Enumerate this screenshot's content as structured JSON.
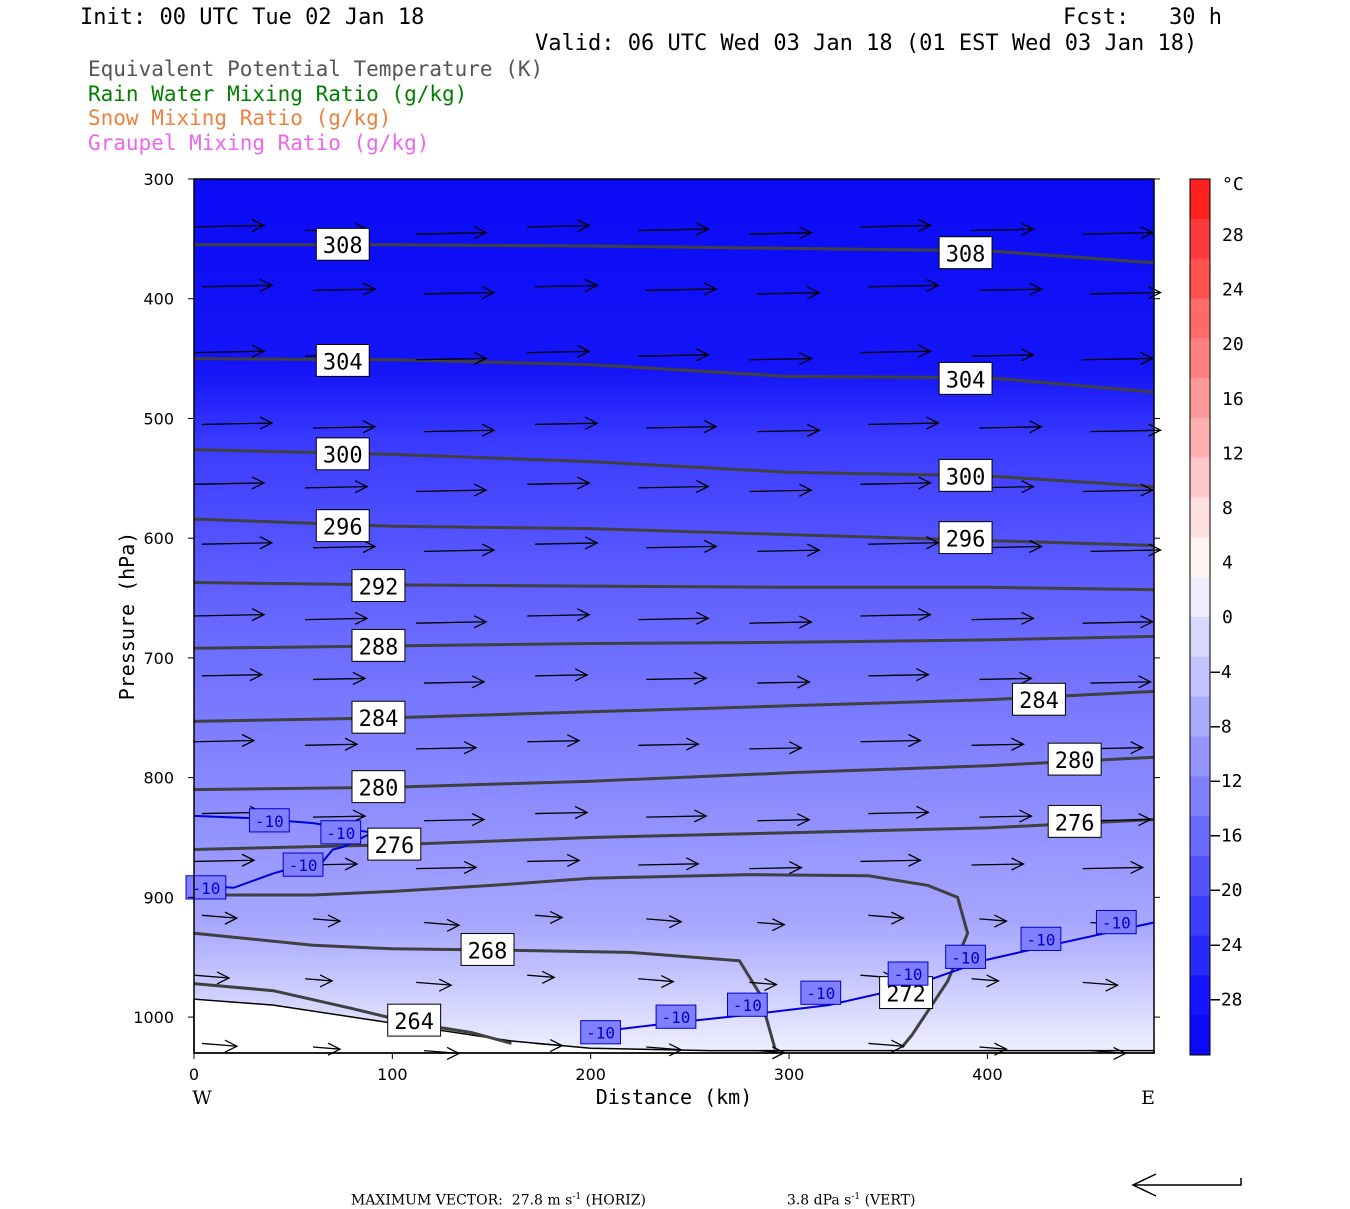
{
  "header": {
    "init": "Init: 00 UTC Tue 02 Jan 18",
    "fcst": "Fcst:   30 h",
    "valid": "Valid: 06 UTC Wed 03 Jan 18 (01 EST Wed 03 Jan 18)"
  },
  "legend_lines": [
    {
      "text": "Equivalent Potential Temperature (K)",
      "color": "#555555"
    },
    {
      "text": "Rain Water Mixing Ratio (g/kg)",
      "color": "#007f00"
    },
    {
      "text": "Snow Mixing Ratio (g/kg)",
      "color": "#f08040"
    },
    {
      "text": "Graupel Mixing Ratio (g/kg)",
      "color": "#ee66ee"
    }
  ],
  "footer": {
    "max_vector_label": "MAXIMUM VECTOR:",
    "horiz": "27.8 m s",
    "horiz_unit": "(HORIZ)",
    "vert": "3.8 dPa s",
    "vert_unit": "(VERT)",
    "exponent": "-1"
  },
  "chart_data": {
    "type": "contour",
    "xlabel": "Distance (km)",
    "ylabel": "Pressure (hPa)",
    "xlim": [
      0,
      484
    ],
    "ylim": [
      1030,
      300
    ],
    "x_ticks": [
      0,
      100,
      200,
      300,
      400
    ],
    "y_ticks": [
      300,
      400,
      500,
      600,
      700,
      800,
      900,
      1000
    ],
    "x_end_labels": {
      "left": "W",
      "right": "E"
    },
    "fill_colors": {
      "cold": "#0a0af5",
      "warm": "#f0f0ff"
    },
    "colorbar": {
      "unit": "°C",
      "labels": [
        28,
        24,
        20,
        16,
        12,
        8,
        4,
        0,
        -4,
        -8,
        -12,
        -16,
        -20,
        -24,
        -28
      ],
      "colors": [
        "#ff2020",
        "#ff3a3a",
        "#ff5050",
        "#ff6a6a",
        "#ff8080",
        "#ff9898",
        "#ffb0b0",
        "#ffc8c8",
        "#ffdfdf",
        "#fff2f2",
        "#eeeeff",
        "#d8d8ff",
        "#c2c2ff",
        "#acacff",
        "#9696ff",
        "#8080ff",
        "#6a6aff",
        "#5454ff",
        "#3e3eff",
        "#2828ff",
        "#1414ff",
        "#0a0af5"
      ]
    },
    "theta_e_contours": [
      {
        "label": "308",
        "points": [
          [
            0,
            355
          ],
          [
            100,
            355
          ],
          [
            200,
            356
          ],
          [
            300,
            358
          ],
          [
            400,
            360
          ],
          [
            484,
            370
          ]
        ]
      },
      {
        "label": "304",
        "points": [
          [
            0,
            450
          ],
          [
            100,
            451
          ],
          [
            200,
            455
          ],
          [
            300,
            465
          ],
          [
            400,
            466
          ],
          [
            484,
            478
          ]
        ]
      },
      {
        "label": "300",
        "points": [
          [
            0,
            526
          ],
          [
            100,
            530
          ],
          [
            200,
            536
          ],
          [
            300,
            545
          ],
          [
            400,
            548
          ],
          [
            484,
            557
          ]
        ]
      },
      {
        "label": "296",
        "points": [
          [
            0,
            584
          ],
          [
            100,
            590
          ],
          [
            200,
            592
          ],
          [
            300,
            597
          ],
          [
            400,
            602
          ],
          [
            484,
            606
          ]
        ]
      },
      {
        "label": "292",
        "points": [
          [
            0,
            637
          ],
          [
            100,
            639
          ],
          [
            200,
            640
          ],
          [
            300,
            641
          ],
          [
            400,
            641
          ],
          [
            484,
            643
          ]
        ]
      },
      {
        "label": "288",
        "points": [
          [
            0,
            692
          ],
          [
            100,
            690
          ],
          [
            200,
            688
          ],
          [
            300,
            687
          ],
          [
            400,
            685
          ],
          [
            484,
            682
          ]
        ]
      },
      {
        "label": "284",
        "points": [
          [
            0,
            753
          ],
          [
            100,
            750
          ],
          [
            200,
            745
          ],
          [
            300,
            740
          ],
          [
            400,
            735
          ],
          [
            484,
            728
          ]
        ]
      },
      {
        "label": "280",
        "points": [
          [
            0,
            810
          ],
          [
            100,
            808
          ],
          [
            200,
            803
          ],
          [
            300,
            796
          ],
          [
            400,
            790
          ],
          [
            484,
            783
          ]
        ]
      },
      {
        "label": "276",
        "points": [
          [
            0,
            860
          ],
          [
            100,
            856
          ],
          [
            200,
            850
          ],
          [
            300,
            846
          ],
          [
            400,
            842
          ],
          [
            484,
            835
          ]
        ]
      },
      {
        "label": "272",
        "points": [
          [
            0,
            898
          ],
          [
            60,
            898
          ],
          [
            100,
            895
          ],
          [
            150,
            890
          ],
          [
            200,
            884
          ],
          [
            280,
            881
          ],
          [
            340,
            882
          ],
          [
            370,
            890
          ],
          [
            385,
            900
          ],
          [
            390,
            930
          ],
          [
            380,
            970
          ],
          [
            362,
            1015
          ],
          [
            357,
            1025
          ]
        ]
      },
      {
        "label": "268",
        "points": [
          [
            0,
            930
          ],
          [
            60,
            940
          ],
          [
            100,
            943
          ],
          [
            150,
            944
          ],
          [
            220,
            946
          ],
          [
            275,
            953
          ],
          [
            285,
            980
          ],
          [
            293,
            1027
          ]
        ]
      },
      {
        "label": "264",
        "points": [
          [
            0,
            972
          ],
          [
            40,
            978
          ],
          [
            80,
            993
          ],
          [
            110,
            1005
          ],
          [
            140,
            1013
          ],
          [
            160,
            1022
          ]
        ]
      }
    ],
    "temperature_contours": [
      {
        "label": "-10",
        "points": [
          [
            0,
            832
          ],
          [
            30,
            834
          ],
          [
            60,
            838
          ],
          [
            90,
            846
          ],
          [
            85,
            850
          ],
          [
            75,
            858
          ],
          [
            70,
            860
          ],
          [
            65,
            870
          ],
          [
            55,
            873
          ],
          [
            40,
            880
          ],
          [
            20,
            892
          ],
          [
            0,
            890
          ]
        ]
      },
      {
        "label": "-10",
        "points": [
          [
            200,
            1013
          ],
          [
            240,
            1005
          ],
          [
            280,
            998
          ],
          [
            320,
            990
          ],
          [
            360,
            975
          ],
          [
            400,
            952
          ],
          [
            440,
            937
          ],
          [
            484,
            921
          ]
        ]
      }
    ],
    "wind_vectors_note": "eastward wind vectors throughout"
  }
}
